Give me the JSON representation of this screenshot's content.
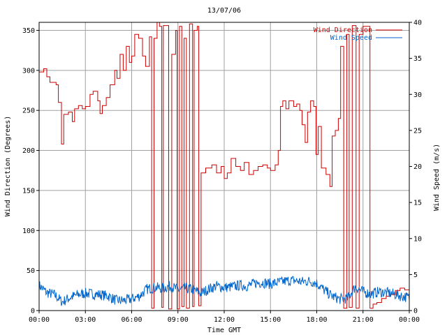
{
  "chart_data": {
    "type": "line",
    "title": "13/07/06",
    "xlabel": "Time GMT",
    "ylabel_left": "Wind Direction (Degrees)",
    "ylabel_right": "Wind Speed (m/s)",
    "x_ticks": [
      "00:00",
      "03:00",
      "06:00",
      "09:00",
      "12:00",
      "15:00",
      "18:00",
      "21:00",
      "00:00"
    ],
    "xlim_hours": [
      0,
      24
    ],
    "ylim_left": [
      0,
      360
    ],
    "yticks_left": [
      0,
      50,
      100,
      150,
      200,
      250,
      300,
      350
    ],
    "ylim_right": [
      0,
      40
    ],
    "yticks_right": [
      0,
      5,
      10,
      15,
      20,
      25,
      30,
      35,
      40
    ],
    "grid": true,
    "legend_position": "top-right",
    "colors": {
      "direction": "#cc0000",
      "speed": "#0066cc"
    },
    "series": [
      {
        "name": "Wind Direction",
        "axis": "left",
        "color": "#cc0000",
        "points": [
          [
            0.0,
            298
          ],
          [
            0.3,
            302
          ],
          [
            0.5,
            292
          ],
          [
            0.7,
            285
          ],
          [
            1.1,
            282
          ],
          [
            1.25,
            260
          ],
          [
            1.45,
            208
          ],
          [
            1.6,
            245
          ],
          [
            1.9,
            248
          ],
          [
            2.15,
            236
          ],
          [
            2.3,
            252
          ],
          [
            2.55,
            256
          ],
          [
            2.8,
            252
          ],
          [
            3.0,
            255
          ],
          [
            3.3,
            270
          ],
          [
            3.5,
            274
          ],
          [
            3.8,
            262
          ],
          [
            3.95,
            246
          ],
          [
            4.1,
            256
          ],
          [
            4.35,
            266
          ],
          [
            4.6,
            282
          ],
          [
            4.9,
            300
          ],
          [
            5.05,
            290
          ],
          [
            5.25,
            320
          ],
          [
            5.45,
            300
          ],
          [
            5.65,
            330
          ],
          [
            5.85,
            310
          ],
          [
            6.0,
            318
          ],
          [
            6.2,
            345
          ],
          [
            6.45,
            340
          ],
          [
            6.7,
            318
          ],
          [
            6.9,
            305
          ],
          [
            7.15,
            342
          ],
          [
            7.3,
            3
          ],
          [
            7.45,
            340
          ],
          [
            7.65,
            360
          ],
          [
            7.8,
            355
          ],
          [
            7.95,
            4
          ],
          [
            8.05,
            356
          ],
          [
            8.25,
            356
          ],
          [
            8.4,
            2
          ],
          [
            8.6,
            320
          ],
          [
            8.85,
            350
          ],
          [
            8.95,
            2
          ],
          [
            9.1,
            355
          ],
          [
            9.25,
            5
          ],
          [
            9.4,
            340
          ],
          [
            9.55,
            3
          ],
          [
            9.75,
            358
          ],
          [
            9.95,
            5
          ],
          [
            10.05,
            350
          ],
          [
            10.25,
            355
          ],
          [
            10.35,
            6
          ],
          [
            10.5,
            172
          ],
          [
            10.8,
            178
          ],
          [
            11.2,
            182
          ],
          [
            11.5,
            172
          ],
          [
            11.8,
            180
          ],
          [
            12.0,
            165
          ],
          [
            12.2,
            172
          ],
          [
            12.45,
            190
          ],
          [
            12.75,
            180
          ],
          [
            13.05,
            175
          ],
          [
            13.3,
            185
          ],
          [
            13.6,
            170
          ],
          [
            13.9,
            175
          ],
          [
            14.2,
            180
          ],
          [
            14.5,
            182
          ],
          [
            14.8,
            178
          ],
          [
            15.0,
            175
          ],
          [
            15.3,
            182
          ],
          [
            15.5,
            200
          ],
          [
            15.65,
            255
          ],
          [
            15.8,
            262
          ],
          [
            16.0,
            252
          ],
          [
            16.2,
            262
          ],
          [
            16.5,
            255
          ],
          [
            16.7,
            258
          ],
          [
            16.9,
            250
          ],
          [
            17.05,
            232
          ],
          [
            17.25,
            210
          ],
          [
            17.4,
            248
          ],
          [
            17.6,
            262
          ],
          [
            17.8,
            255
          ],
          [
            17.95,
            195
          ],
          [
            18.1,
            230
          ],
          [
            18.3,
            178
          ],
          [
            18.6,
            170
          ],
          [
            18.85,
            155
          ],
          [
            19.0,
            218
          ],
          [
            19.2,
            225
          ],
          [
            19.4,
            240
          ],
          [
            19.55,
            330
          ],
          [
            19.75,
            3
          ],
          [
            19.95,
            345
          ],
          [
            20.1,
            4
          ],
          [
            20.3,
            356
          ],
          [
            20.55,
            3
          ],
          [
            20.75,
            345
          ],
          [
            21.0,
            355
          ],
          [
            21.2,
            355
          ],
          [
            21.45,
            3
          ],
          [
            21.65,
            8
          ],
          [
            21.9,
            10
          ],
          [
            22.2,
            15
          ],
          [
            22.5,
            18
          ],
          [
            22.8,
            20
          ],
          [
            23.1,
            25
          ],
          [
            23.4,
            28
          ],
          [
            23.7,
            26
          ],
          [
            24.0,
            25
          ]
        ]
      },
      {
        "name": "Wind Speed",
        "axis": "right",
        "color": "#0066cc",
        "points": [
          [
            0.0,
            3.5
          ],
          [
            0.5,
            2.5
          ],
          [
            1.0,
            2.2
          ],
          [
            1.5,
            1.2
          ],
          [
            2.0,
            1.8
          ],
          [
            2.5,
            2.2
          ],
          [
            3.0,
            2.4
          ],
          [
            3.5,
            2.3
          ],
          [
            4.0,
            2.2
          ],
          [
            4.5,
            2.0
          ],
          [
            5.0,
            1.4
          ],
          [
            5.5,
            1.4
          ],
          [
            6.0,
            1.6
          ],
          [
            6.5,
            2.0
          ],
          [
            7.0,
            3.0
          ],
          [
            7.5,
            3.2
          ],
          [
            8.0,
            3.1
          ],
          [
            8.5,
            3.4
          ],
          [
            9.0,
            2.9
          ],
          [
            9.5,
            3.1
          ],
          [
            10.0,
            2.9
          ],
          [
            10.5,
            2.4
          ],
          [
            11.0,
            3.0
          ],
          [
            11.5,
            3.4
          ],
          [
            12.0,
            3.2
          ],
          [
            12.5,
            3.3
          ],
          [
            13.0,
            3.5
          ],
          [
            13.5,
            3.4
          ],
          [
            14.0,
            3.8
          ],
          [
            14.5,
            3.9
          ],
          [
            15.0,
            3.7
          ],
          [
            15.5,
            3.9
          ],
          [
            16.0,
            4.1
          ],
          [
            16.5,
            4.2
          ],
          [
            17.0,
            4.0
          ],
          [
            17.5,
            4.1
          ],
          [
            18.0,
            3.8
          ],
          [
            18.5,
            2.8
          ],
          [
            19.0,
            2.0
          ],
          [
            19.5,
            1.6
          ],
          [
            20.0,
            1.7
          ],
          [
            20.5,
            3.3
          ],
          [
            21.0,
            2.6
          ],
          [
            21.5,
            2.3
          ],
          [
            22.0,
            2.6
          ],
          [
            22.5,
            2.5
          ],
          [
            23.0,
            2.3
          ],
          [
            23.5,
            2.0
          ],
          [
            24.0,
            1.8
          ]
        ]
      }
    ]
  }
}
